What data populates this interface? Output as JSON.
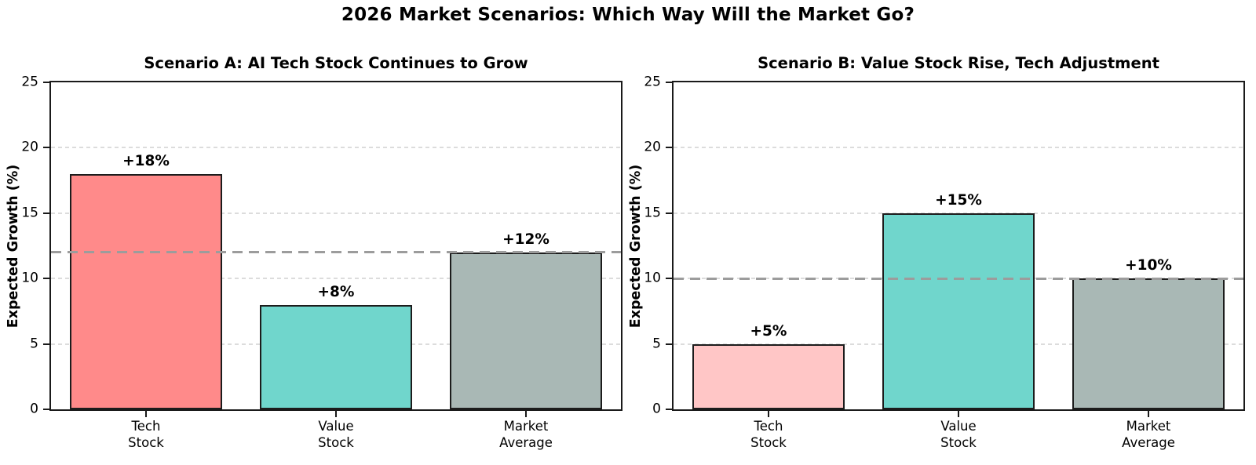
{
  "page_title": "2026 Market Scenarios: Which Way Will the Market Go?",
  "colors": {
    "background": "#ffffff",
    "text": "#000000",
    "axis": "#1a1a1a",
    "gridline": "#dcdcdc",
    "reference_line": "#9c9c9c",
    "bar_edge": "#1c1c1c"
  },
  "chart_data": [
    {
      "type": "bar",
      "title": "Scenario A: AI Tech Stock Continues to Grow",
      "ylabel": "Expected Growth (%)",
      "xlabel": "",
      "categories": [
        "Tech\nStock",
        "Value\nStock",
        "Market\nAverage"
      ],
      "values": [
        18,
        8,
        12
      ],
      "bar_labels": [
        "+18%",
        "+8%",
        "+12%"
      ],
      "bar_colors": [
        "#ff8a8a",
        "#70d6cc",
        "#a9b8b5"
      ],
      "bar_edge_color": "#1c1c1c",
      "reference_line": 12,
      "ylim": [
        0,
        25
      ],
      "yticks": [
        0,
        5,
        10,
        15,
        20,
        25
      ],
      "grid": "horizontal-dashed",
      "legend": "none"
    },
    {
      "type": "bar",
      "title": "Scenario B: Value Stock Rise, Tech Adjustment",
      "ylabel": "Expected Growth (%)",
      "xlabel": "",
      "categories": [
        "Tech\nStock",
        "Value\nStock",
        "Market\nAverage"
      ],
      "values": [
        5,
        15,
        10
      ],
      "bar_labels": [
        "+5%",
        "+15%",
        "+10%"
      ],
      "bar_colors": [
        "#ffc6c6",
        "#70d6cc",
        "#a9b8b5"
      ],
      "bar_edge_color": "#1c1c1c",
      "reference_line": 10,
      "ylim": [
        0,
        25
      ],
      "yticks": [
        0,
        5,
        10,
        15,
        20,
        25
      ],
      "grid": "horizontal-dashed",
      "legend": "none"
    }
  ]
}
